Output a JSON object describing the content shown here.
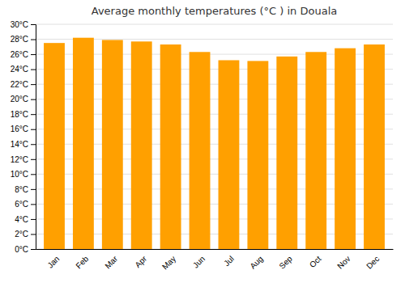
{
  "chart_data": {
    "type": "bar",
    "title": "Average monthly temperatures (°C ) in Douala",
    "categories": [
      "Jan",
      "Feb",
      "Mar",
      "Apr",
      "May",
      "Jun",
      "Jul",
      "Aug",
      "Sep",
      "Oct",
      "Nov",
      "Dec"
    ],
    "values": [
      27.5,
      28.2,
      27.9,
      27.7,
      27.3,
      26.3,
      25.2,
      25.1,
      25.7,
      26.3,
      26.8,
      27.3
    ],
    "color": "#FFA000",
    "ylim": [
      0,
      30
    ],
    "yticks": [
      {
        "value": 0,
        "label": "0°C"
      },
      {
        "value": 2,
        "label": "2°C"
      },
      {
        "value": 4,
        "label": "4°C"
      },
      {
        "value": 6,
        "label": "6°C"
      },
      {
        "value": 8,
        "label": "8°C"
      },
      {
        "value": 10,
        "label": "10°C"
      },
      {
        "value": 12,
        "label": "12°C"
      },
      {
        "value": 14,
        "label": "14°C"
      },
      {
        "value": 16,
        "label": "16°C"
      },
      {
        "value": 18,
        "label": "18°C"
      },
      {
        "value": 20,
        "label": "20°C"
      },
      {
        "value": 22,
        "label": "22°C"
      },
      {
        "value": 24,
        "label": "24°C"
      },
      {
        "value": 26,
        "label": "26°C"
      },
      {
        "value": 28,
        "label": "28°C"
      },
      {
        "value": 30,
        "label": "30°C"
      }
    ],
    "grid": true
  }
}
